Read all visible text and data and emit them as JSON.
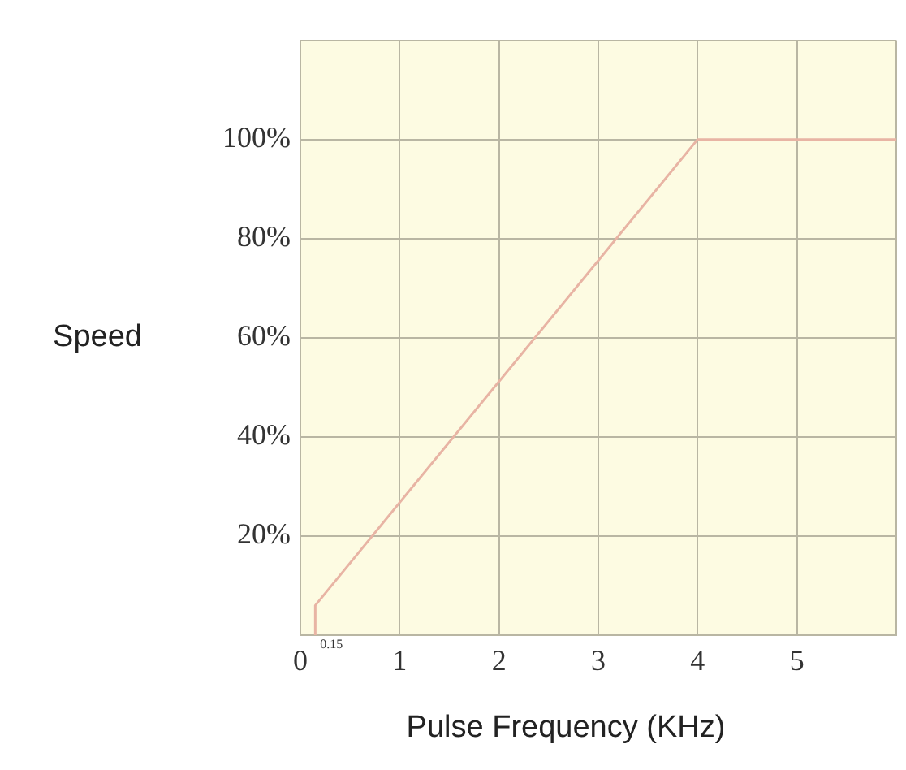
{
  "chart_data": {
    "type": "line",
    "xlabel": "Pulse Frequency (KHz)",
    "ylabel": "Speed",
    "xlim": [
      0,
      6
    ],
    "ylim": [
      0,
      120
    ],
    "xticks": [
      0,
      1,
      2,
      3,
      4,
      5,
      {
        "value": 6,
        "label": null
      }
    ],
    "annotations": [
      {
        "text": "0.15",
        "x": 0.15,
        "y": 0
      }
    ],
    "yticks": [
      {
        "value": 0,
        "label": null
      },
      {
        "value": 20,
        "label": "20%"
      },
      {
        "value": 40,
        "label": "40%"
      },
      {
        "value": 60,
        "label": "60%"
      },
      {
        "value": 80,
        "label": "80%"
      },
      {
        "value": 100,
        "label": "100%"
      },
      {
        "value": 120,
        "label": null
      }
    ],
    "grid": true,
    "legend": false,
    "marker": "none",
    "line_style": "solid",
    "series": [
      {
        "color": "#e8b4a4",
        "x": [
          0.15,
          0.15,
          4,
          6
        ],
        "values": [
          0,
          6,
          100,
          100
        ]
      }
    ]
  }
}
